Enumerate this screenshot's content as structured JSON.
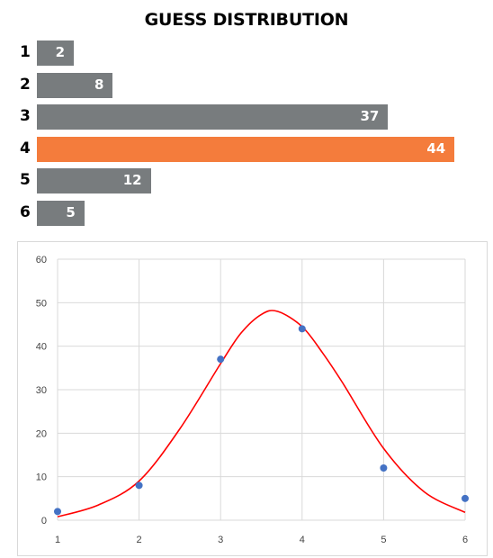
{
  "chart_data": [
    {
      "type": "bar",
      "orientation": "horizontal",
      "title": "GUESS DISTRIBUTION",
      "categories": [
        "1",
        "2",
        "3",
        "4",
        "5",
        "6"
      ],
      "values": [
        2,
        8,
        37,
        44,
        12,
        5
      ],
      "highlight_index": 3,
      "colors": {
        "default": "#787c7e",
        "highlight": "#f47c3c",
        "text": "#ffffff"
      }
    },
    {
      "type": "scatter",
      "x": [
        1,
        2,
        3,
        4,
        5,
        6
      ],
      "y": [
        2,
        8,
        37,
        44,
        12,
        5
      ],
      "xlim": [
        1,
        6
      ],
      "ylim": [
        0,
        60
      ],
      "xticks": [
        1,
        2,
        3,
        4,
        5,
        6
      ],
      "yticks": [
        0,
        10,
        20,
        30,
        40,
        50,
        60
      ],
      "grid": true,
      "fit_curve": {
        "x": [
          1,
          1.5,
          2,
          2.5,
          3,
          3.25,
          3.5,
          3.7,
          4,
          4.25,
          4.5,
          5,
          5.5,
          6
        ],
        "y": [
          0.8,
          3.5,
          9,
          21,
          36,
          43,
          47.3,
          48,
          44.5,
          38.5,
          31.5,
          16.5,
          6.5,
          1.8
        ]
      },
      "colors": {
        "points": "#4472c4",
        "curve": "#ff0000",
        "grid": "#d9d9d9"
      }
    }
  ]
}
